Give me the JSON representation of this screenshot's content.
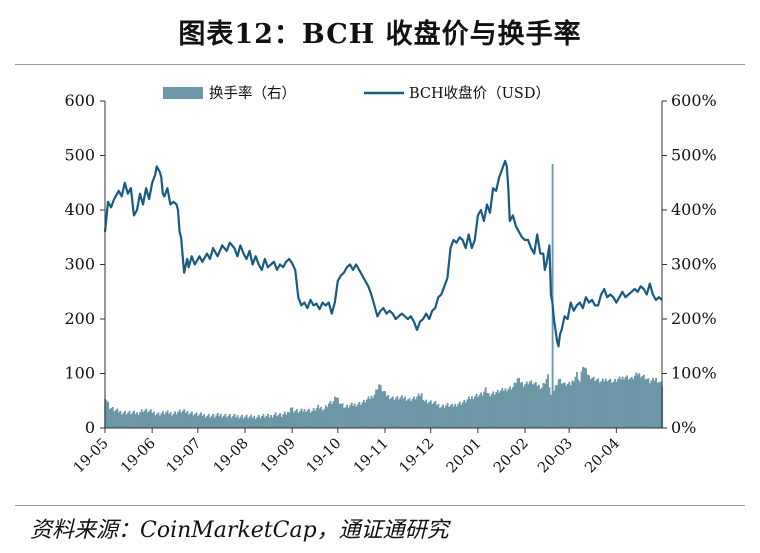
{
  "title": "图表12：BCH 收盘价与换手率",
  "source": "资料来源：CoinMarketCap，通证通研究",
  "colors": {
    "price_line": "#1a5a82",
    "turnover_bar": "#6b97a7"
  },
  "chart_data": {
    "type": "bar+line",
    "legend_position": "top-center",
    "grid": false,
    "x_tick_labels": [
      "19-05",
      "19-06",
      "19-07",
      "19-08",
      "19-09",
      "19-10",
      "19-11",
      "19-12",
      "20-01",
      "20-02",
      "20-03",
      "20-04"
    ],
    "y_left": {
      "ticks": [
        "0",
        "100",
        "200",
        "300",
        "400",
        "500",
        "600"
      ],
      "range": [
        0,
        600
      ]
    },
    "y_right": {
      "ticks": [
        "0%",
        "100%",
        "200%",
        "300%",
        "400%",
        "500%",
        "600%"
      ],
      "range": [
        0,
        600
      ]
    },
    "series": [
      {
        "name": "换手率（右）",
        "type": "bar",
        "axis": "right",
        "unit": "%",
        "points": [
          [
            0,
            58
          ],
          [
            3,
            38
          ],
          [
            7,
            32
          ],
          [
            11,
            29
          ],
          [
            16,
            28
          ],
          [
            21,
            27
          ],
          [
            25,
            33
          ],
          [
            30,
            30
          ],
          [
            35,
            26
          ],
          [
            40,
            28
          ],
          [
            45,
            27
          ],
          [
            50,
            31
          ],
          [
            55,
            29
          ],
          [
            60,
            25
          ],
          [
            64,
            24
          ],
          [
            68,
            23
          ],
          [
            72,
            22
          ],
          [
            76,
            24
          ],
          [
            80,
            23
          ],
          [
            84,
            21
          ],
          [
            88,
            22
          ],
          [
            92,
            21
          ],
          [
            96,
            20
          ],
          [
            100,
            21
          ],
          [
            104,
            22
          ],
          [
            108,
            21
          ],
          [
            112,
            26
          ],
          [
            116,
            23
          ],
          [
            120,
            28
          ],
          [
            122,
            38
          ],
          [
            124,
            32
          ],
          [
            128,
            30
          ],
          [
            132,
            34
          ],
          [
            136,
            31
          ],
          [
            140,
            38
          ],
          [
            144,
            36
          ],
          [
            147,
            45
          ],
          [
            150,
            48
          ],
          [
            152,
            58
          ],
          [
            155,
            45
          ],
          [
            158,
            38
          ],
          [
            162,
            42
          ],
          [
            166,
            44
          ],
          [
            170,
            48
          ],
          [
            174,
            55
          ],
          [
            177,
            62
          ],
          [
            180,
            80
          ],
          [
            182,
            70
          ],
          [
            185,
            60
          ],
          [
            189,
            55
          ],
          [
            193,
            55
          ],
          [
            197,
            56
          ],
          [
            200,
            52
          ],
          [
            204,
            55
          ],
          [
            208,
            62
          ],
          [
            210,
            50
          ],
          [
            213,
            48
          ],
          [
            217,
            45
          ],
          [
            221,
            40
          ],
          [
            225,
            42
          ],
          [
            228,
            40
          ],
          [
            232,
            45
          ],
          [
            236,
            48
          ],
          [
            240,
            55
          ],
          [
            244,
            60
          ],
          [
            248,
            62
          ],
          [
            250,
            70
          ],
          [
            252,
            62
          ],
          [
            256,
            65
          ],
          [
            260,
            68
          ],
          [
            264,
            72
          ],
          [
            268,
            75
          ],
          [
            271,
            90
          ],
          [
            275,
            80
          ],
          [
            279,
            85
          ],
          [
            283,
            80
          ],
          [
            287,
            75
          ],
          [
            291,
            95
          ],
          [
            293,
            60
          ],
          [
            294,
            480
          ],
          [
            295,
            70
          ],
          [
            298,
            90
          ],
          [
            302,
            80
          ],
          [
            306,
            80
          ],
          [
            310,
            100
          ],
          [
            312,
            85
          ],
          [
            314,
            115
          ],
          [
            318,
            95
          ],
          [
            322,
            90
          ],
          [
            326,
            85
          ],
          [
            330,
            90
          ],
          [
            334,
            85
          ],
          [
            338,
            90
          ],
          [
            342,
            95
          ],
          [
            346,
            90
          ],
          [
            350,
            100
          ],
          [
            354,
            95
          ],
          [
            358,
            85
          ],
          [
            362,
            90
          ],
          [
            366,
            80
          ]
        ]
      },
      {
        "name": "BCH收盘价（USD）",
        "type": "line",
        "axis": "left",
        "unit": "USD",
        "points": [
          [
            0,
            360
          ],
          [
            2,
            415
          ],
          [
            4,
            405
          ],
          [
            6,
            420
          ],
          [
            9,
            435
          ],
          [
            11,
            425
          ],
          [
            13,
            450
          ],
          [
            15,
            430
          ],
          [
            17,
            440
          ],
          [
            19,
            390
          ],
          [
            21,
            400
          ],
          [
            23,
            430
          ],
          [
            25,
            410
          ],
          [
            27,
            440
          ],
          [
            29,
            420
          ],
          [
            31,
            450
          ],
          [
            33,
            465
          ],
          [
            34,
            480
          ],
          [
            36,
            470
          ],
          [
            37,
            460
          ],
          [
            38,
            430
          ],
          [
            39,
            425
          ],
          [
            41,
            440
          ],
          [
            43,
            410
          ],
          [
            45,
            415
          ],
          [
            47,
            410
          ],
          [
            48,
            400
          ],
          [
            49,
            360
          ],
          [
            50,
            350
          ],
          [
            52,
            285
          ],
          [
            54,
            310
          ],
          [
            55,
            295
          ],
          [
            57,
            315
          ],
          [
            59,
            300
          ],
          [
            62,
            315
          ],
          [
            64,
            305
          ],
          [
            67,
            320
          ],
          [
            69,
            310
          ],
          [
            71,
            330
          ],
          [
            74,
            315
          ],
          [
            77,
            335
          ],
          [
            80,
            325
          ],
          [
            82,
            340
          ],
          [
            85,
            330
          ],
          [
            87,
            315
          ],
          [
            89,
            335
          ],
          [
            91,
            320
          ],
          [
            93,
            310
          ],
          [
            95,
            325
          ],
          [
            97,
            300
          ],
          [
            99,
            315
          ],
          [
            101,
            300
          ],
          [
            103,
            290
          ],
          [
            105,
            310
          ],
          [
            107,
            295
          ],
          [
            109,
            300
          ],
          [
            111,
            305
          ],
          [
            113,
            290
          ],
          [
            115,
            300
          ],
          [
            117,
            295
          ],
          [
            119,
            305
          ],
          [
            121,
            310
          ],
          [
            123,
            302
          ],
          [
            125,
            290
          ],
          [
            127,
            240
          ],
          [
            129,
            225
          ],
          [
            131,
            230
          ],
          [
            133,
            220
          ],
          [
            135,
            235
          ],
          [
            137,
            225
          ],
          [
            139,
            228
          ],
          [
            141,
            218
          ],
          [
            143,
            230
          ],
          [
            145,
            225
          ],
          [
            147,
            230
          ],
          [
            149,
            210
          ],
          [
            151,
            230
          ],
          [
            153,
            270
          ],
          [
            155,
            280
          ],
          [
            157,
            285
          ],
          [
            159,
            295
          ],
          [
            161,
            300
          ],
          [
            163,
            290
          ],
          [
            165,
            300
          ],
          [
            167,
            290
          ],
          [
            169,
            280
          ],
          [
            171,
            270
          ],
          [
            173,
            260
          ],
          [
            175,
            245
          ],
          [
            177,
            225
          ],
          [
            179,
            205
          ],
          [
            181,
            215
          ],
          [
            183,
            220
          ],
          [
            185,
            210
          ],
          [
            187,
            215
          ],
          [
            189,
            210
          ],
          [
            191,
            200
          ],
          [
            193,
            205
          ],
          [
            195,
            210
          ],
          [
            197,
            205
          ],
          [
            199,
            200
          ],
          [
            201,
            205
          ],
          [
            203,
            195
          ],
          [
            205,
            180
          ],
          [
            207,
            195
          ],
          [
            209,
            200
          ],
          [
            211,
            210
          ],
          [
            213,
            200
          ],
          [
            215,
            215
          ],
          [
            217,
            220
          ],
          [
            219,
            240
          ],
          [
            221,
            245
          ],
          [
            223,
            260
          ],
          [
            225,
            275
          ],
          [
            227,
            330
          ],
          [
            229,
            345
          ],
          [
            231,
            340
          ],
          [
            233,
            350
          ],
          [
            235,
            345
          ],
          [
            237,
            330
          ],
          [
            239,
            355
          ],
          [
            241,
            330
          ],
          [
            243,
            345
          ],
          [
            245,
            390
          ],
          [
            247,
            400
          ],
          [
            249,
            380
          ],
          [
            251,
            410
          ],
          [
            253,
            395
          ],
          [
            255,
            440
          ],
          [
            257,
            435
          ],
          [
            259,
            460
          ],
          [
            261,
            475
          ],
          [
            263,
            490
          ],
          [
            264,
            480
          ],
          [
            265,
            440
          ],
          [
            266,
            380
          ],
          [
            268,
            390
          ],
          [
            270,
            370
          ],
          [
            272,
            360
          ],
          [
            274,
            350
          ],
          [
            276,
            345
          ],
          [
            278,
            345
          ],
          [
            280,
            330
          ],
          [
            282,
            320
          ],
          [
            284,
            355
          ],
          [
            286,
            320
          ],
          [
            288,
            320
          ],
          [
            289,
            290
          ],
          [
            290,
            300
          ],
          [
            292,
            335
          ],
          [
            293,
            245
          ],
          [
            294,
            230
          ],
          [
            295,
            200
          ],
          [
            296,
            180
          ],
          [
            297,
            160
          ],
          [
            298,
            150
          ],
          [
            299,
            172
          ],
          [
            300,
            180
          ],
          [
            302,
            205
          ],
          [
            304,
            200
          ],
          [
            306,
            230
          ],
          [
            308,
            215
          ],
          [
            310,
            225
          ],
          [
            312,
            230
          ],
          [
            314,
            220
          ],
          [
            316,
            240
          ],
          [
            318,
            230
          ],
          [
            320,
            235
          ],
          [
            322,
            225
          ],
          [
            324,
            225
          ],
          [
            326,
            245
          ],
          [
            328,
            255
          ],
          [
            330,
            240
          ],
          [
            332,
            245
          ],
          [
            334,
            240
          ],
          [
            336,
            230
          ],
          [
            338,
            240
          ],
          [
            340,
            250
          ],
          [
            342,
            240
          ],
          [
            344,
            245
          ],
          [
            346,
            250
          ],
          [
            348,
            255
          ],
          [
            350,
            250
          ],
          [
            352,
            260
          ],
          [
            354,
            255
          ],
          [
            356,
            245
          ],
          [
            358,
            265
          ],
          [
            360,
            245
          ],
          [
            362,
            235
          ],
          [
            364,
            240
          ],
          [
            366,
            235
          ]
        ]
      }
    ]
  }
}
